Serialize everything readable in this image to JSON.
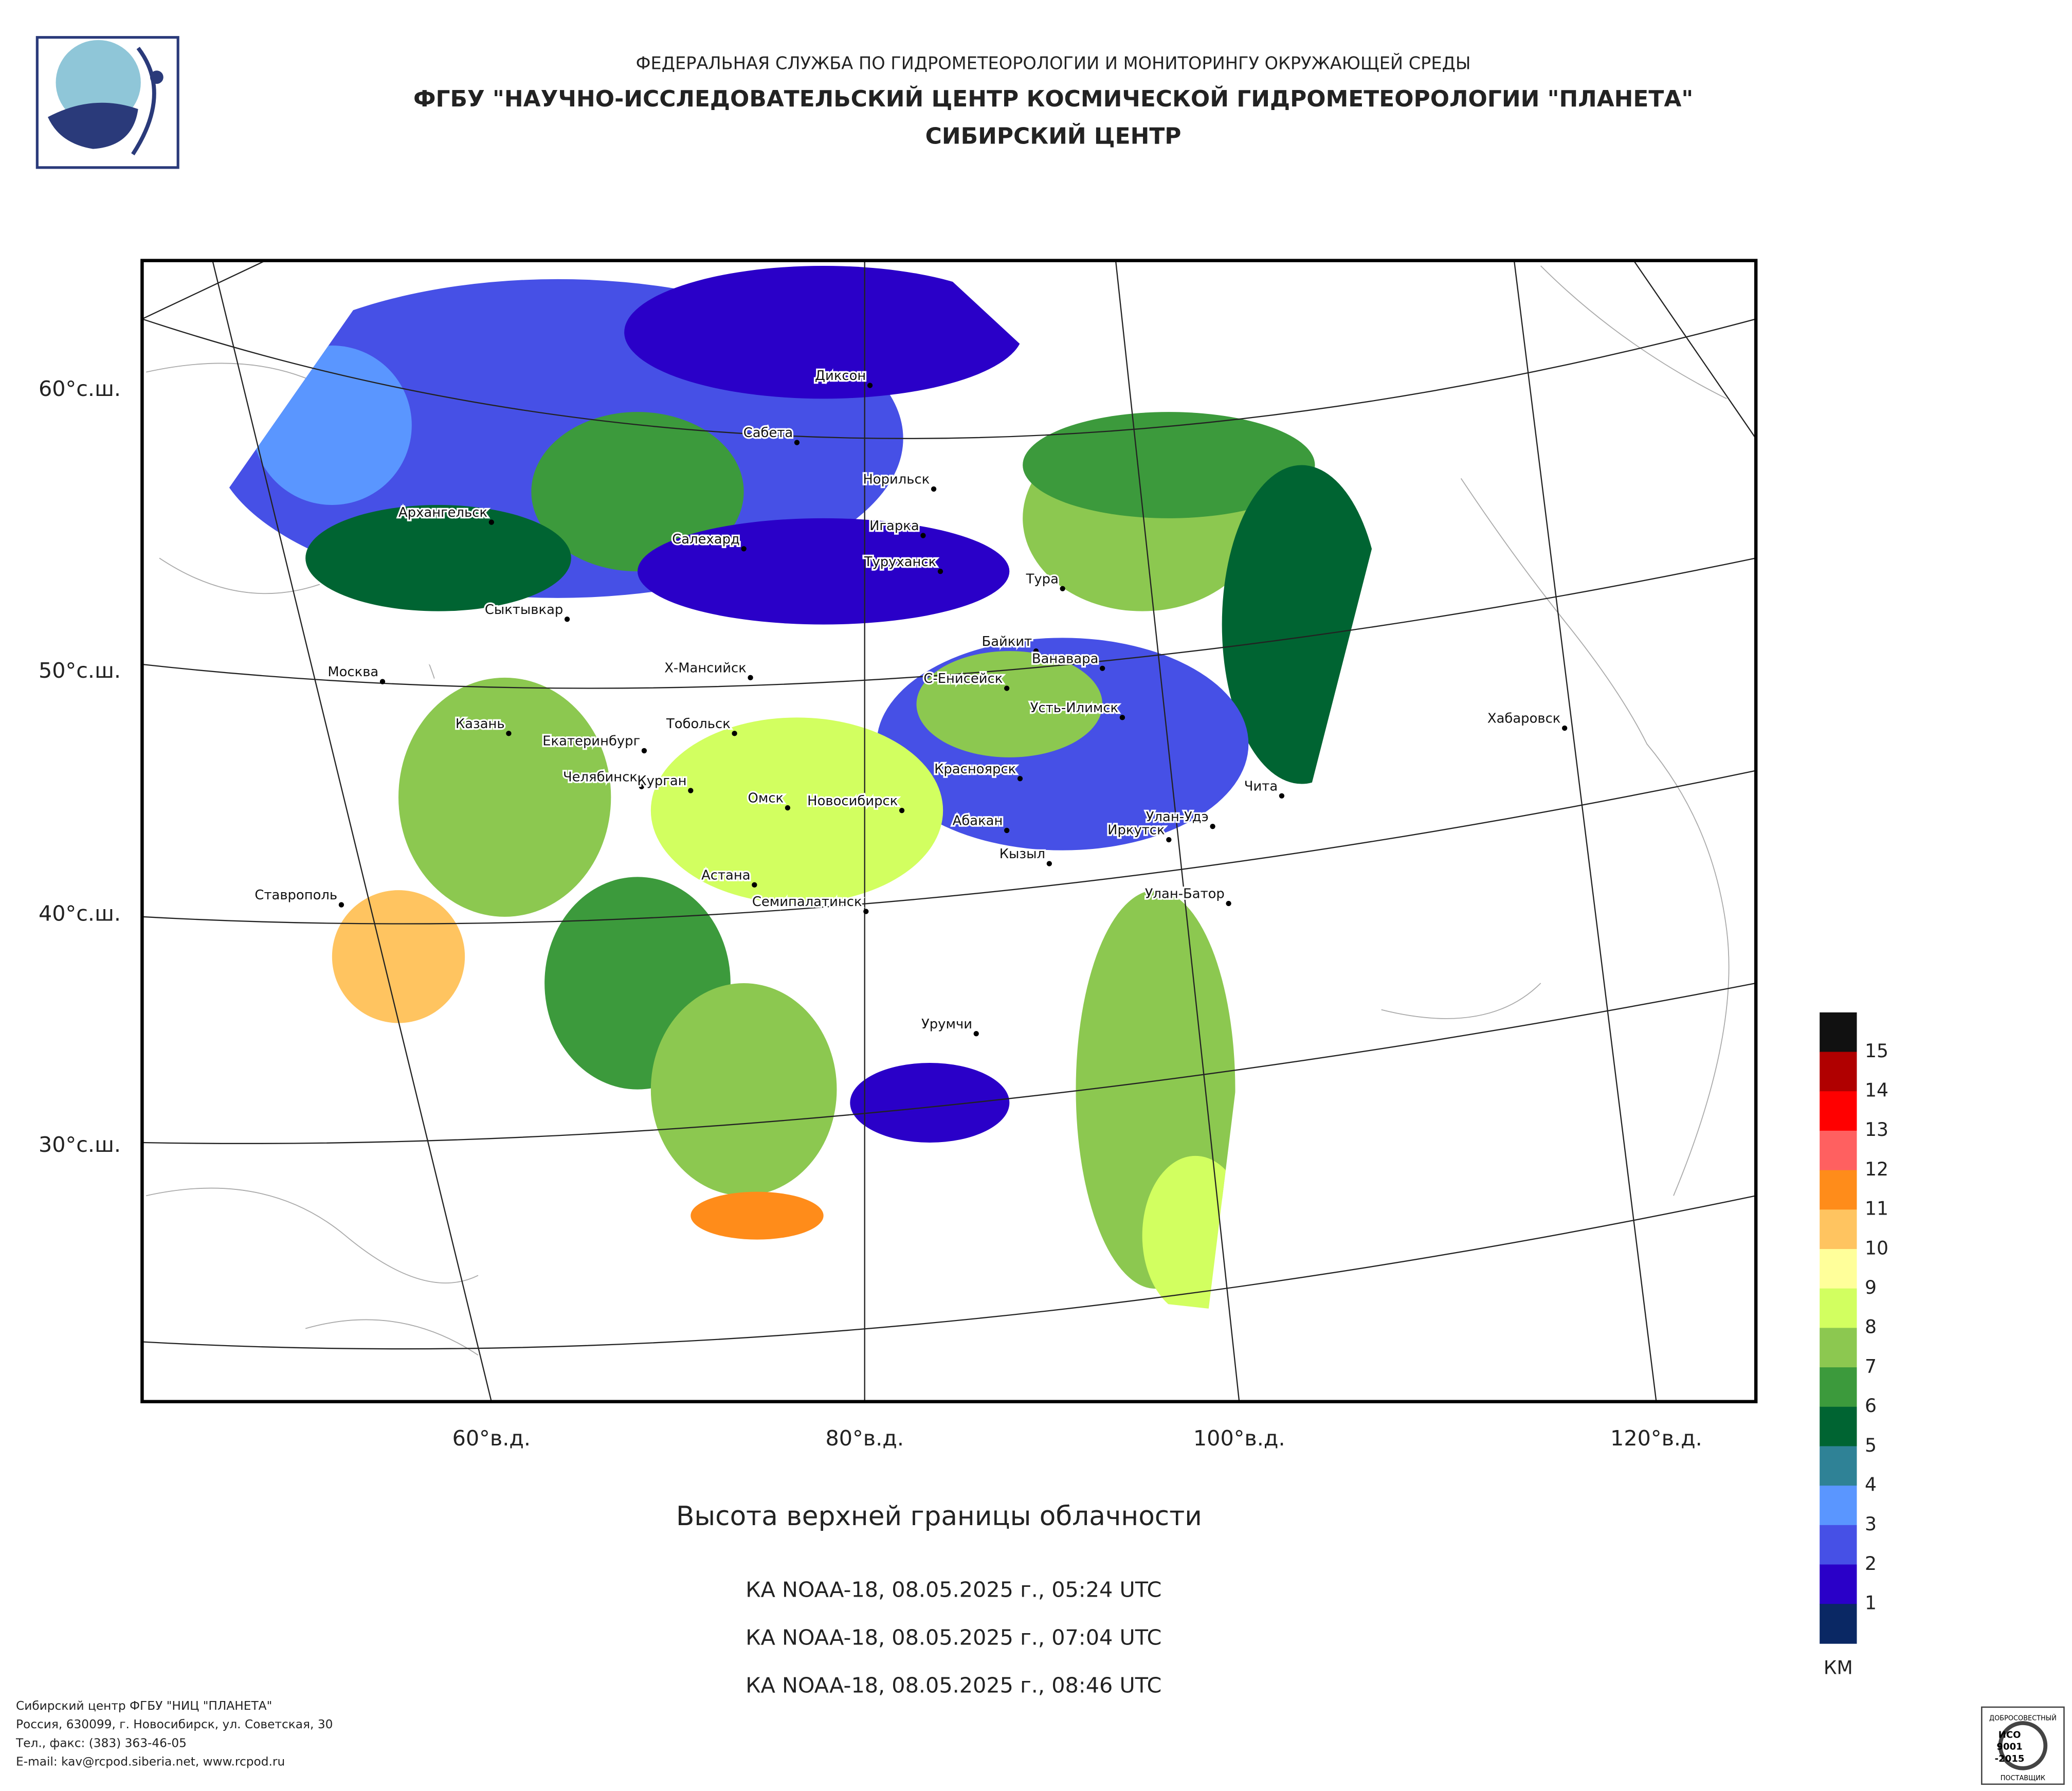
{
  "header": {
    "line1": "ФЕДЕРАЛЬНАЯ СЛУЖБА ПО ГИДРОМЕТЕОРОЛОГИИ И МОНИТОРИНГУ ОКРУЖАЮЩЕЙ СРЕДЫ",
    "line2": "ФГБУ \"НАУЧНО-ИССЛЕДОВАТЕЛЬСКИЙ ЦЕНТР КОСМИЧЕСКОЙ ГИДРОМЕТЕОРОЛОГИИ \"ПЛАНЕТА\"",
    "line3": "СИБИРСКИЙ ЦЕНТР"
  },
  "map": {
    "lat_labels": [
      "60°с.ш.",
      "50°с.ш.",
      "40°с.ш.",
      "30°с.ш."
    ],
    "lon_labels": [
      "60°в.д.",
      "80°в.д.",
      "100°в.д.",
      "120°в.д."
    ],
    "cities": [
      "Диксон",
      "Сабета",
      "Норильск",
      "Архангельск",
      "Салехард",
      "Игарка",
      "Туруханск",
      "Тура",
      "Сыктывкар",
      "Байкит",
      "Ванавара",
      "Москва",
      "Х-Мансийск",
      "С-Енисейск",
      "Усть-Илимск",
      "Хабаровск",
      "Казань",
      "Тобольск",
      "Екатеринбург",
      "Челябинск",
      "Курган",
      "Омск",
      "Красноярск",
      "Новосибирск",
      "Чита",
      "Улан-Удэ",
      "Абакан",
      "Иркутск",
      "Кызыл",
      "Астана",
      "Ставрополь",
      "Семипалатинск",
      "Улан-Батор",
      "Урумчи"
    ]
  },
  "caption": {
    "title": "Высота верхней границы облачности",
    "passes": [
      "КА NOAA-18, 08.05.2025 г., 05:24 UTC",
      "КА NOAA-18, 08.05.2025 г., 07:04 UTC",
      "КА NOAA-18, 08.05.2025 г., 08:46 UTC"
    ]
  },
  "colorbar": {
    "colors": [
      "#111111",
      "#b00000",
      "#ff0000",
      "#ff6060",
      "#ff8c1a",
      "#ffc460",
      "#ffff9a",
      "#d2ff60",
      "#8cc850",
      "#3c9a3c",
      "#006432",
      "#2f8296",
      "#5a96ff",
      "#4650e6",
      "#2a00c8",
      "#0a2864"
    ],
    "labels": [
      "15",
      "14",
      "13",
      "12",
      "11",
      "10",
      "9",
      "8",
      "7",
      "6",
      "5",
      "4",
      "3",
      "2",
      "1"
    ],
    "unit": "КМ"
  },
  "footer": [
    "Сибирский центр ФГБУ \"НИЦ \"ПЛАНЕТА\"",
    "Россия, 630099, г. Новосибирск, ул. Советская, 30",
    "Тел., факс: (383) 363-46-05",
    "E-mail: kav@rcpod.siberia.net, www.rcpod.ru"
  ],
  "badge": {
    "top": "ДОБРОСОВЕСТНЫЙ",
    "iso": "ИСО",
    "num": "9001",
    "year": "-2015",
    "bottom": "ПОСТАВЩИК"
  }
}
